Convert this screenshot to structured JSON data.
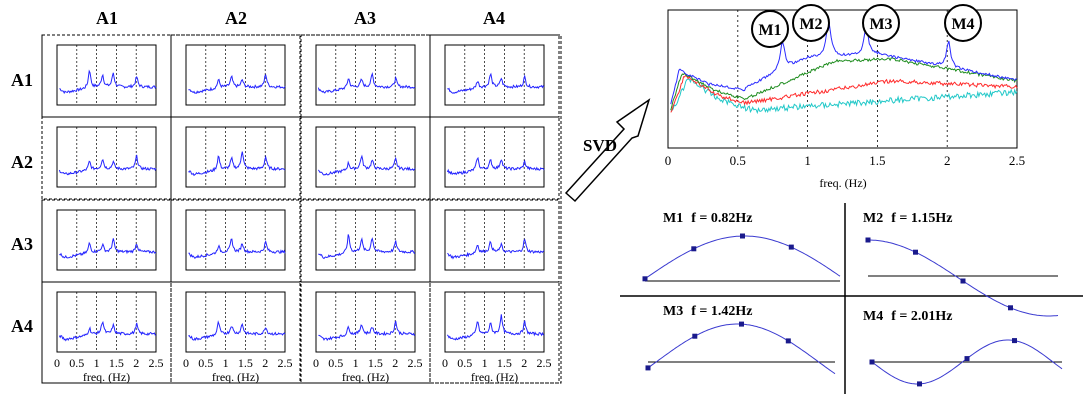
{
  "matrix": {
    "col_headers": [
      "A1",
      "A2",
      "A3",
      "A4"
    ],
    "row_headers": [
      "A1",
      "A2",
      "A3",
      "A4"
    ],
    "x_ticks": [
      "0",
      "0.5",
      "1",
      "1.5",
      "2",
      "2.5"
    ],
    "xlabel": "freq. (Hz)"
  },
  "svd_label": "SVD",
  "sv_plot": {
    "peaks": [
      "M1",
      "M2",
      "M3",
      "M4"
    ],
    "x_ticks": [
      "0",
      "0.5",
      "1",
      "1.5",
      "2",
      "2.5"
    ],
    "xlabel": "freq. (Hz)",
    "colors": {
      "sv1": "#2b2bff",
      "sv2": "#1e8c1e",
      "sv3": "#ff2a2a",
      "sv4": "#22c8c8"
    }
  },
  "modes": [
    {
      "name": "M1",
      "freq": "f = 0.82Hz"
    },
    {
      "name": "M2",
      "freq": "f = 1.15Hz"
    },
    {
      "name": "M3",
      "freq": "f = 1.42Hz"
    },
    {
      "name": "M4",
      "freq": "f = 2.01Hz"
    }
  ],
  "chart_data": {
    "type": "line",
    "x": [
      0,
      0.5,
      1.0,
      1.5,
      2.0,
      2.5
    ],
    "xlim": [
      0,
      2.5
    ],
    "xlabel": "freq. (Hz)",
    "grid": "vertical dashed at 0.5 Hz steps",
    "series": [
      {
        "peaks_hz": [
          0.82,
          1.15,
          1.42,
          2.01
        ]
      }
    ]
  }
}
